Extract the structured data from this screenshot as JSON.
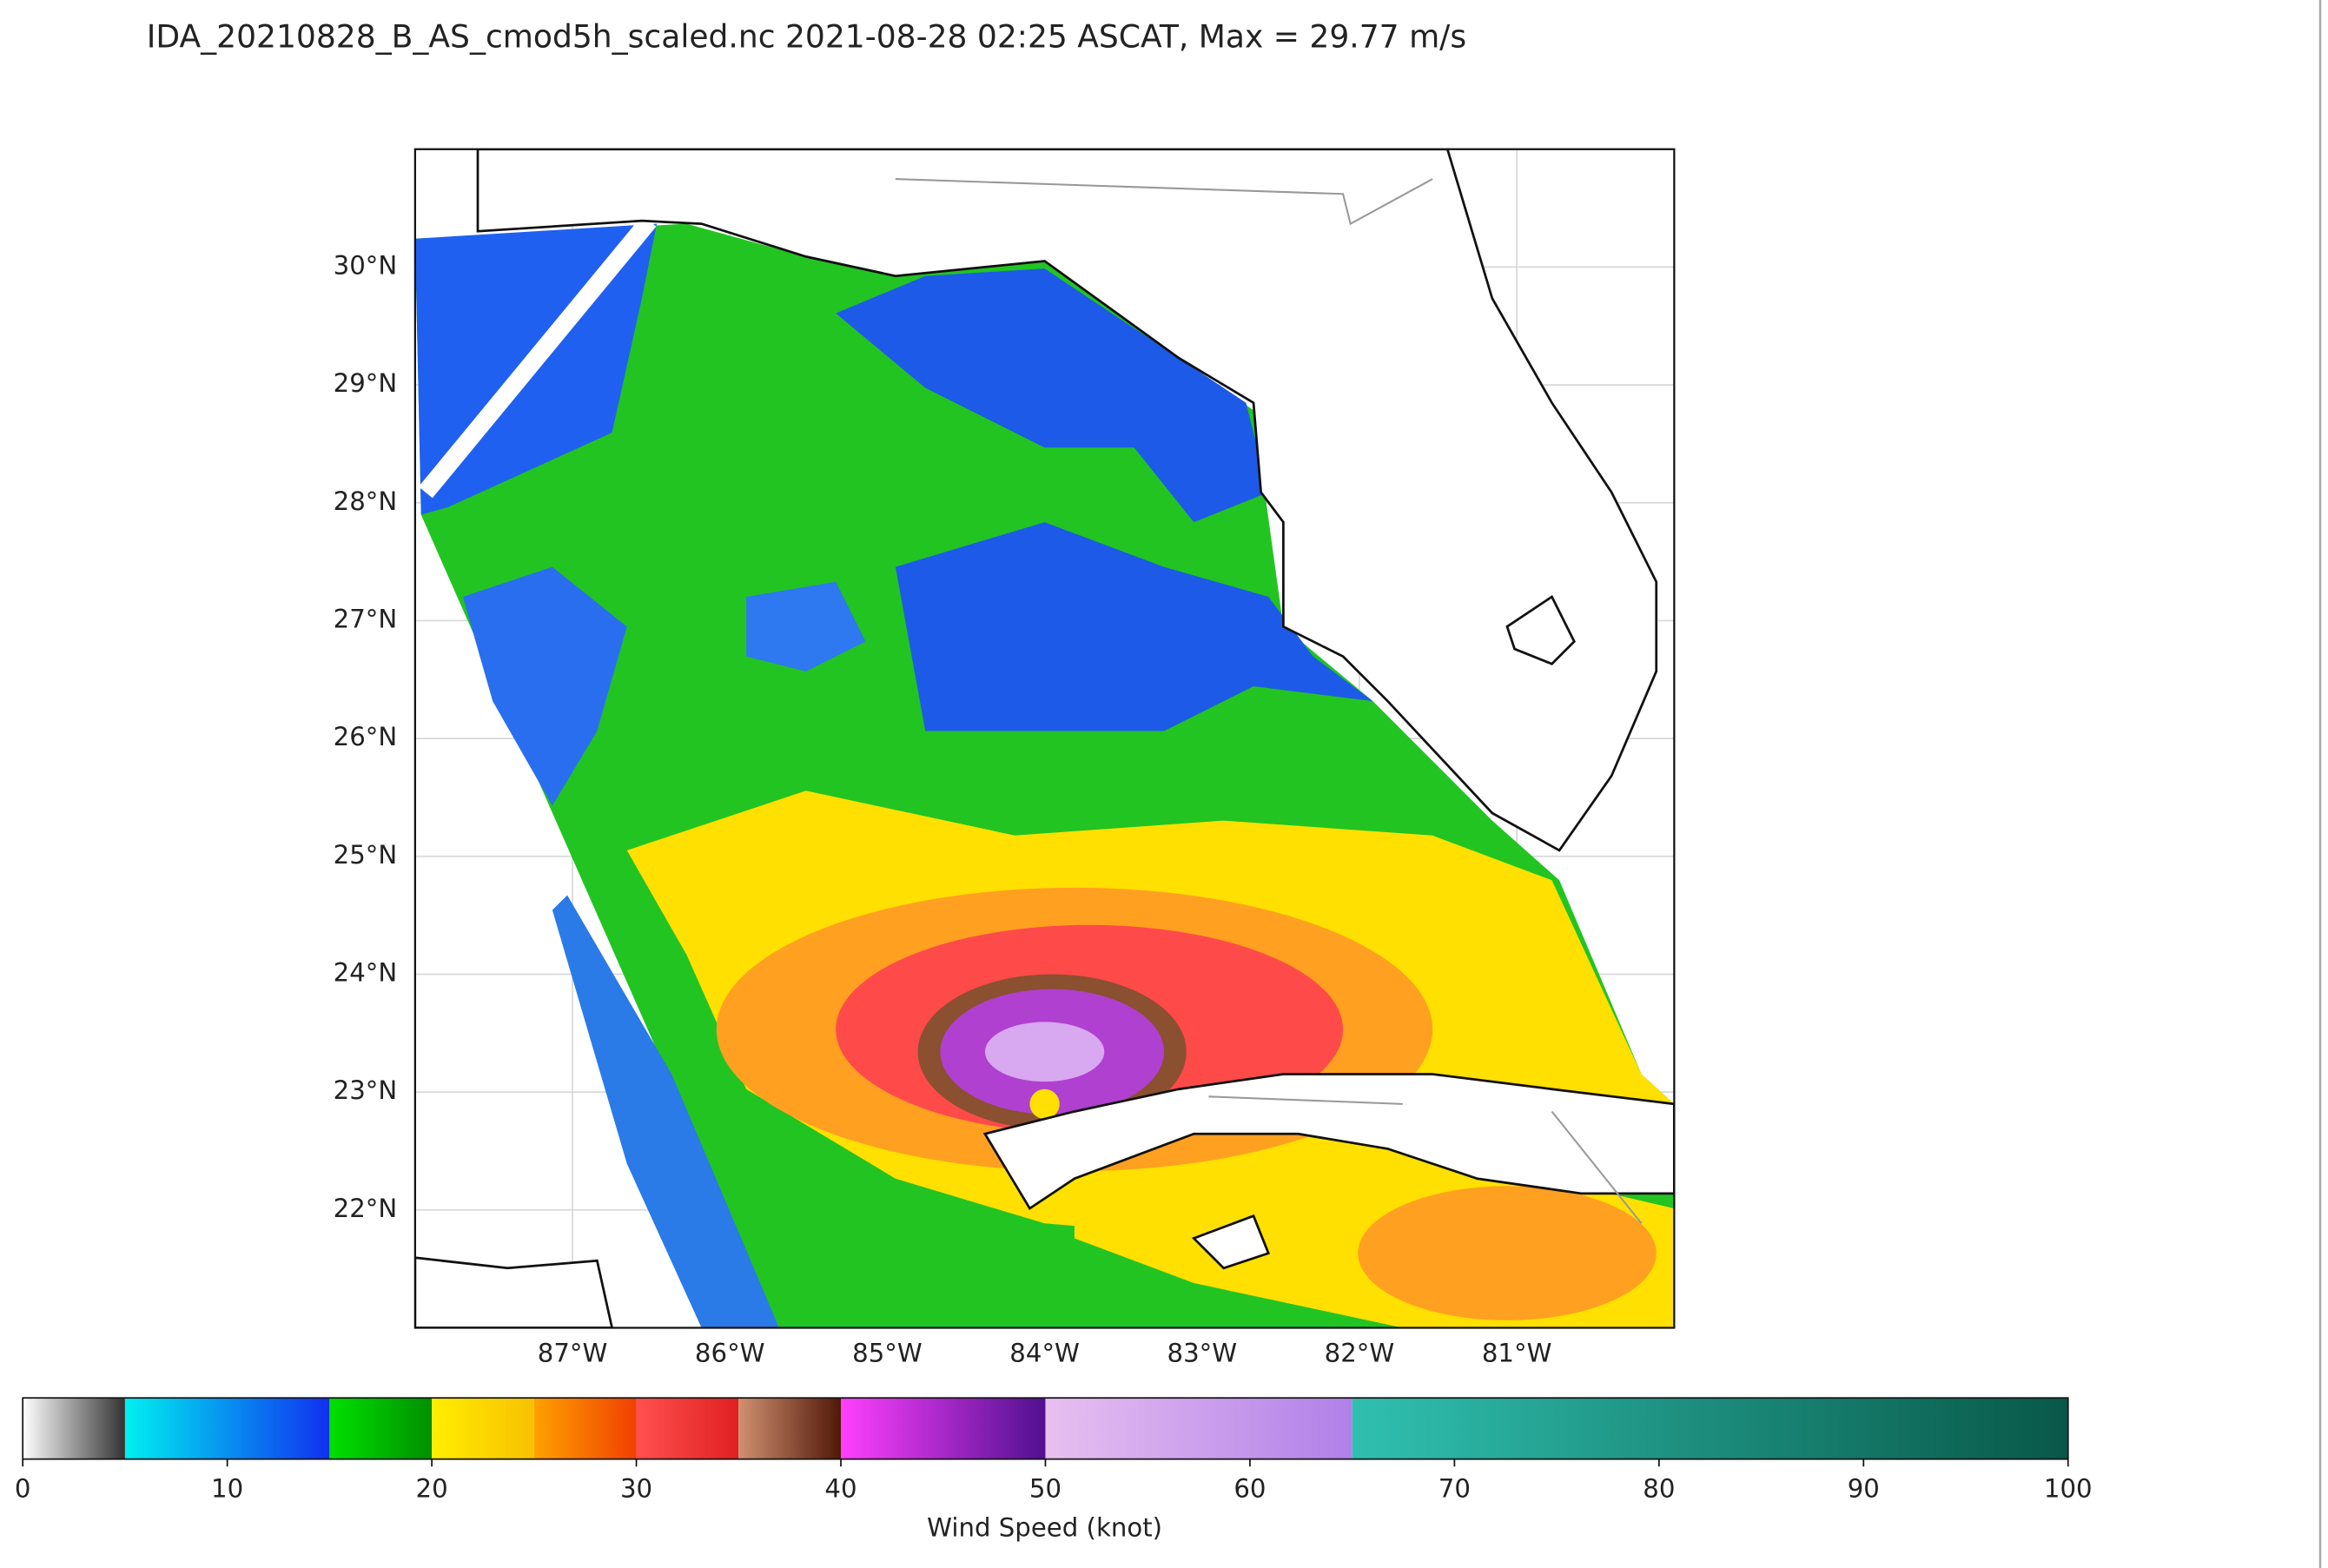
{
  "title": "IDA_20210828_B_AS_cmod5h_scaled.nc 2021-08-28 02:25 ASCAT, Max = 29.77 m/s",
  "map": {
    "xlim": [
      -88,
      -80
    ],
    "ylim": [
      21,
      31
    ],
    "xticks": [
      {
        "value": -87,
        "label": "87°W"
      },
      {
        "value": -86,
        "label": "86°W"
      },
      {
        "value": -85,
        "label": "85°W"
      },
      {
        "value": -84,
        "label": "84°W"
      },
      {
        "value": -83,
        "label": "83°W"
      },
      {
        "value": -82,
        "label": "82°W"
      },
      {
        "value": -81,
        "label": "81°W"
      }
    ],
    "yticks": [
      {
        "value": 22,
        "label": "22°N"
      },
      {
        "value": 23,
        "label": "23°N"
      },
      {
        "value": 24,
        "label": "24°N"
      },
      {
        "value": 25,
        "label": "25°N"
      },
      {
        "value": 26,
        "label": "26°N"
      },
      {
        "value": 27,
        "label": "27°N"
      },
      {
        "value": 28,
        "label": "28°N"
      },
      {
        "value": 29,
        "label": "29°N"
      },
      {
        "value": 30,
        "label": "30°N"
      }
    ]
  },
  "colorbar": {
    "label": "Wind Speed (knot)",
    "lim": [
      0,
      100
    ],
    "ticks": [
      0,
      10,
      20,
      30,
      40,
      50,
      60,
      70,
      80,
      90,
      100
    ],
    "bins": [
      0,
      5,
      15,
      20,
      25,
      30,
      35,
      40,
      50,
      65,
      100
    ],
    "colors": [
      [
        "#ffffff",
        "#333333"
      ],
      [
        "#00f0f0",
        "#1030f0"
      ],
      [
        "#00e000",
        "#009000"
      ],
      [
        "#ffee00",
        "#f8c000"
      ],
      [
        "#ffa000",
        "#f04000"
      ],
      [
        "#ff5050",
        "#e02020"
      ],
      [
        "#d09070",
        "#501808"
      ],
      [
        "#ff40ff",
        "#501090"
      ],
      [
        "#e8c0f0",
        "#b080e8"
      ],
      [
        "#30c0b0",
        "#085848"
      ]
    ]
  }
}
